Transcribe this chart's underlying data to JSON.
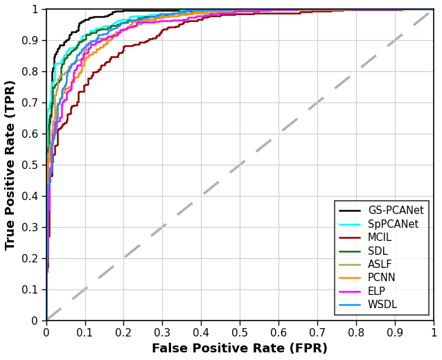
{
  "title": "",
  "xlabel": "False Positive Rate (FPR)",
  "ylabel": "True Positive Rate (TPR)",
  "xlim": [
    0,
    1
  ],
  "ylim": [
    0,
    1
  ],
  "xticks": [
    0,
    0.1,
    0.2,
    0.3,
    0.4,
    0.5,
    0.6,
    0.7,
    0.8,
    0.9,
    1.0
  ],
  "yticks": [
    0,
    0.1,
    0.2,
    0.3,
    0.4,
    0.5,
    0.6,
    0.7,
    0.8,
    0.9,
    1.0
  ],
  "diagonal_color": "#b0b0b0",
  "diagonal_linestyle": "--",
  "background_color": "#ffffff",
  "grid_color": "#cccccc",
  "curves": [
    {
      "label": "GS-PCANet",
      "color": "#000000",
      "linewidth": 1.8,
      "auc_param": 0.98,
      "seed": 42
    },
    {
      "label": "SpPCANet",
      "color": "#00ffff",
      "linewidth": 1.8,
      "auc_param": 0.94,
      "seed": 7
    },
    {
      "label": "MCIL",
      "color": "#8b0000",
      "linewidth": 1.8,
      "auc_param": 0.84,
      "seed": 15
    },
    {
      "label": "SDL",
      "color": "#1a6b1a",
      "linewidth": 1.8,
      "auc_param": 0.91,
      "seed": 23
    },
    {
      "label": "ASLF",
      "color": "#b8a060",
      "linewidth": 1.8,
      "auc_param": 0.93,
      "seed": 31
    },
    {
      "label": "PCNN",
      "color": "#ff8c00",
      "linewidth": 1.8,
      "auc_param": 0.89,
      "seed": 55
    },
    {
      "label": "ELP",
      "color": "#ff00ff",
      "linewidth": 1.8,
      "auc_param": 0.87,
      "seed": 63
    },
    {
      "label": "WSDL",
      "color": "#1e90ff",
      "linewidth": 1.8,
      "auc_param": 0.92,
      "seed": 77
    }
  ],
  "legend_loc": "lower right",
  "legend_fontsize": 10.5,
  "axis_fontsize": 13,
  "tick_fontsize": 11
}
